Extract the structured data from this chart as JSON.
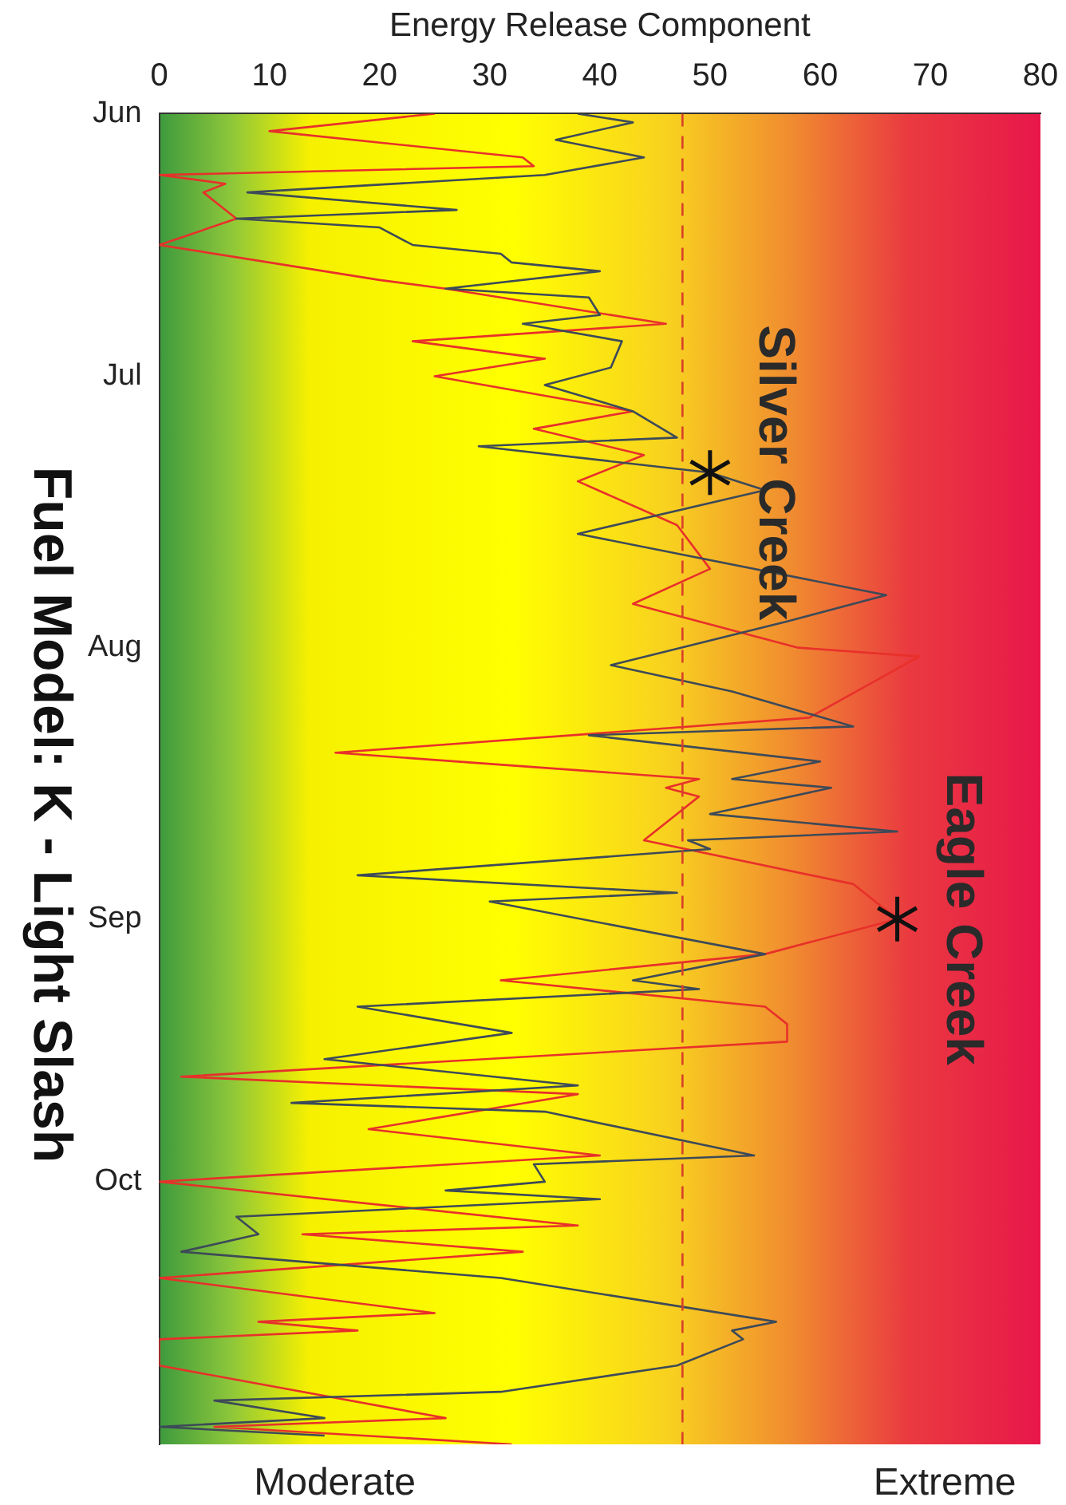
{
  "chart_data": {
    "type": "line",
    "orientation": "horizontal",
    "title": "Fuel Model: K - Light Slash",
    "xlabel": "Energy Release Component",
    "ylim": [
      "--10-31",
      "--06-01"
    ],
    "yticks": [
      {
        "value": "--06-01",
        "label": "Jun"
      },
      {
        "value": "--07-01",
        "label": "Jul"
      },
      {
        "value": "--08-01",
        "label": "Aug"
      },
      {
        "value": "--09-01",
        "label": "Sep"
      },
      {
        "value": "--10-01",
        "label": "Oct"
      }
    ],
    "xlim": [
      0,
      80
    ],
    "xticks": [
      0,
      10,
      20,
      30,
      40,
      50,
      60,
      70,
      80
    ],
    "series": [
      {
        "color": "#3d4a58",
        "x": [
          "--06-01",
          "--06-02",
          "--06-04",
          "--06-06",
          "--06-08",
          "--06-10",
          "--06-12",
          "--06-13",
          "--06-14",
          "--06-16",
          "--06-17",
          "--06-18",
          "--06-19",
          "--06-21",
          "--06-22",
          "--06-24",
          "--06-25",
          "--06-27",
          "--06-30",
          "--07-02",
          "--07-05",
          "--07-08",
          "--07-09",
          "--07-12",
          "--07-14",
          "--07-19",
          "--07-26",
          "--07-29",
          "--08-03",
          "--08-06",
          "--08-10",
          "--08-11",
          "--08-14",
          "--08-16",
          "--08-17",
          "--08-20",
          "--08-22",
          "--08-23",
          "--08-24",
          "--08-27",
          "--08-29",
          "--08-30",
          "--09-05",
          "--09-08",
          "--09-09",
          "--09-11",
          "--09-14",
          "--09-17",
          "--09-20",
          "--09-22",
          "--09-23",
          "--09-28",
          "--09-29",
          "--10-01",
          "--10-02",
          "--10-03",
          "--10-05",
          "--10-07",
          "--10-09",
          "--10-12",
          "--10-17",
          "--10-18",
          "--10-19",
          "--10-22",
          "--10-25",
          "--10-26",
          "--10-28",
          "--10-29",
          "--10-30"
        ],
        "values": [
          38,
          43,
          36,
          44,
          35,
          8,
          27,
          7,
          20,
          23,
          31,
          32,
          40,
          26,
          39,
          40,
          33,
          42,
          41,
          35,
          43,
          47,
          29,
          50,
          55,
          38,
          66,
          57,
          41,
          52,
          63,
          39,
          60,
          52,
          61,
          50,
          67,
          48,
          50,
          18,
          47,
          30,
          55,
          43,
          49,
          18,
          32,
          15,
          38,
          12,
          35,
          54,
          34,
          35,
          26,
          40,
          7,
          9,
          2,
          31,
          56,
          52,
          53,
          47,
          31,
          5,
          15,
          0,
          15
        ]
      },
      {
        "color": "#e8302a",
        "x": [
          "--06-01",
          "--06-03",
          "--06-06",
          "--06-07",
          "--06-08",
          "--06-09",
          "--06-10",
          "--06-13",
          "--06-16",
          "--06-20",
          "--06-21",
          "--06-25",
          "--06-27",
          "--06-29",
          "--07-01",
          "--07-05",
          "--07-07",
          "--07-10",
          "--07-13",
          "--07-18",
          "--07-23",
          "--07-27",
          "--08-01",
          "--08-02",
          "--08-09",
          "--08-13",
          "--08-16",
          "--08-17",
          "--08-18",
          "--08-23",
          "--08-28",
          "--09-01",
          "--09-05",
          "--09-08",
          "--09-11",
          "--09-13",
          "--09-15",
          "--09-19",
          "--09-21",
          "--09-25",
          "--09-28",
          "--10-01",
          "--10-06",
          "--10-07",
          "--10-09",
          "--10-12",
          "--10-16",
          "--10-17",
          "--10-18",
          "--10-19",
          "--10-22",
          "--10-28",
          "--10-29",
          "--10-31"
        ],
        "values": [
          25,
          10,
          33,
          34,
          0,
          6,
          4,
          7,
          0,
          20,
          26,
          46,
          23,
          35,
          25,
          43,
          34,
          44,
          38,
          47,
          50,
          43,
          58,
          69,
          59,
          16,
          49,
          46,
          49,
          44,
          63,
          67,
          55,
          31,
          55,
          57,
          57,
          2,
          38,
          19,
          40,
          0,
          38,
          13,
          33,
          0,
          25,
          9,
          18,
          0,
          0,
          26,
          5,
          32
        ]
      }
    ],
    "ref_lines": [
      {
        "axis": "x",
        "value": 47.5,
        "color": "#d9402a",
        "line_style": "dashed"
      }
    ],
    "annotations": [
      {
        "text": "Silver Creek",
        "x": 50,
        "y": "--07-12"
      },
      {
        "text": "Eagle Creek",
        "x": 67,
        "y": "--09-01"
      },
      "Moderate",
      "Extreme"
    ]
  }
}
